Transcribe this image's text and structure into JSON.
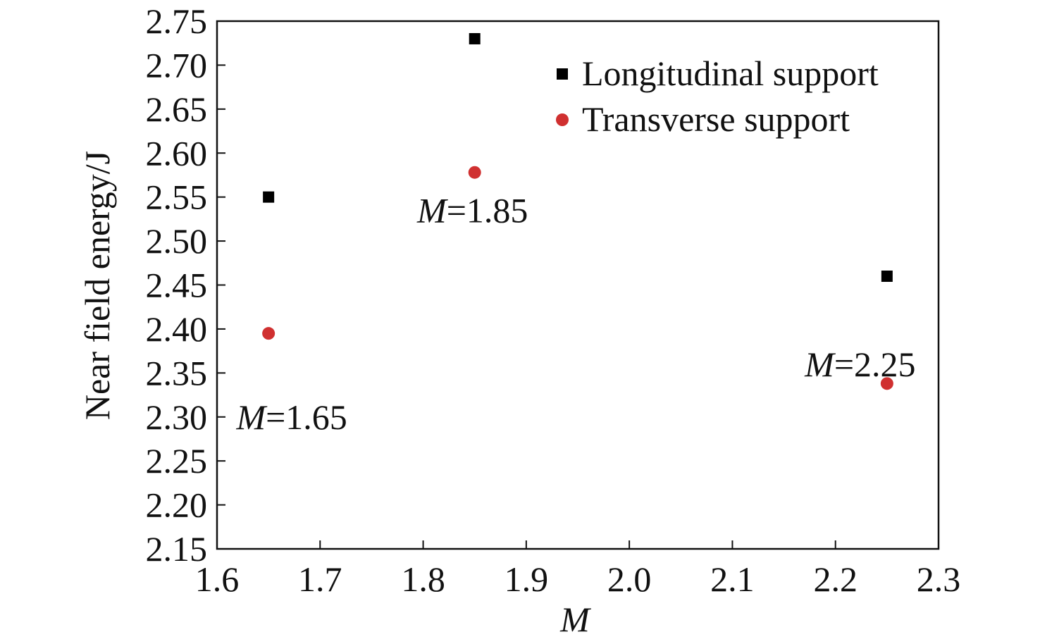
{
  "chart_data": {
    "type": "scatter",
    "xlabel": "M",
    "ylabel": "Near field energy/J",
    "xlim": [
      1.6,
      2.3
    ],
    "ylim": [
      2.15,
      2.75
    ],
    "xticks": [
      "1.6",
      "1.7",
      "1.8",
      "1.9",
      "2.0",
      "2.1",
      "2.2",
      "2.3"
    ],
    "yticks": [
      "2.15",
      "2.20",
      "2.25",
      "2.30",
      "2.35",
      "2.40",
      "2.45",
      "2.50",
      "2.55",
      "2.60",
      "2.65",
      "2.70",
      "2.75"
    ],
    "grid": false,
    "legend_position": "top-right",
    "series": [
      {
        "name": "Longitudinal support",
        "marker": "square",
        "color": "#000000",
        "points": [
          {
            "x": 1.65,
            "y": 2.55
          },
          {
            "x": 1.85,
            "y": 2.73
          },
          {
            "x": 2.25,
            "y": 2.46
          }
        ]
      },
      {
        "name": "Transverse support",
        "marker": "circle",
        "color": "#d03030",
        "points": [
          {
            "x": 1.65,
            "y": 2.395
          },
          {
            "x": 1.85,
            "y": 2.578
          },
          {
            "x": 2.25,
            "y": 2.338
          }
        ]
      }
    ],
    "annotations": [
      {
        "var": "M",
        "value": "=1.65",
        "x": 1.65,
        "y": 2.3
      },
      {
        "var": "M",
        "value": "=1.85",
        "x": 1.85,
        "y": 2.535
      },
      {
        "var": "M",
        "value": "=2.25",
        "x": 2.25,
        "y": 2.36
      }
    ]
  }
}
